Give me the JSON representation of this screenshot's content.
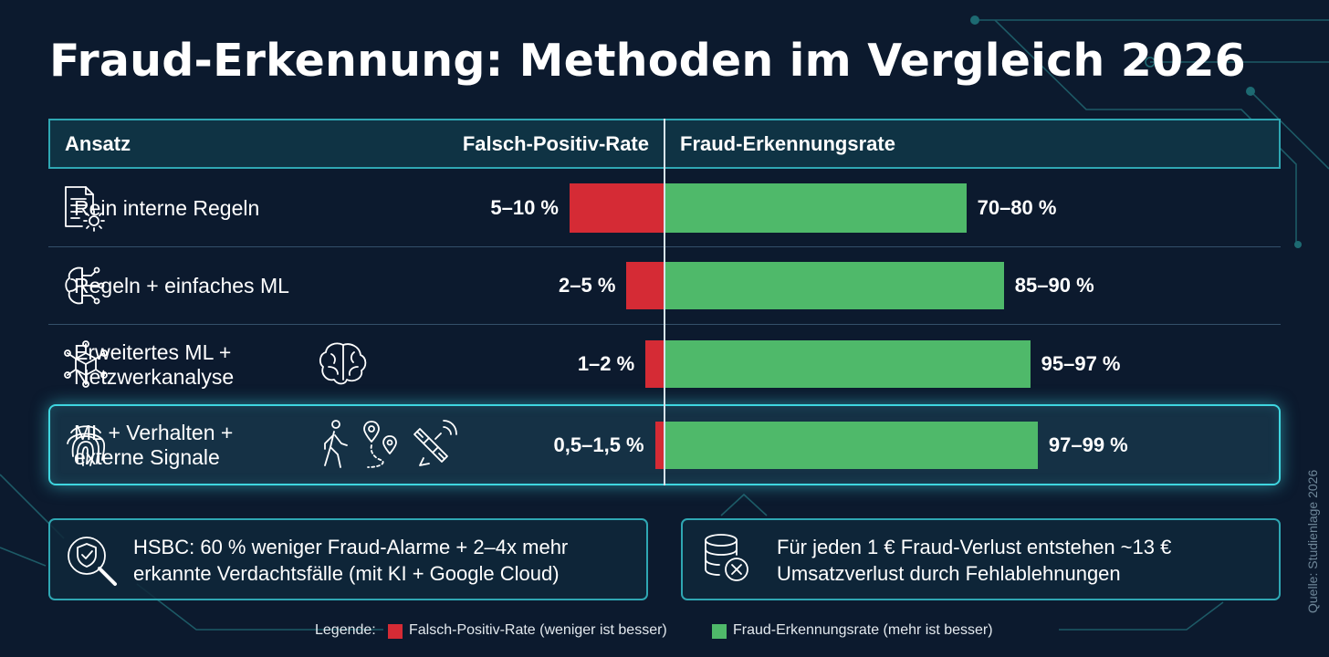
{
  "title": "Fraud-Erkennung: Methoden im Vergleich 2026",
  "header": {
    "approach": "Ansatz",
    "fp_rate": "Falsch-Positiv-Rate",
    "detection_rate": "Fraud-Erkennungsrate"
  },
  "chart_data": {
    "type": "bar",
    "categories": [
      "Rein interne Regeln",
      "Regeln + einfaches ML",
      "Erweitertes ML + Netzwerkanalyse",
      "ML + Verhalten + externe Signale"
    ],
    "series": [
      {
        "name": "Falsch-Positiv-Rate",
        "direction": "left",
        "unit": "%",
        "ranges": [
          [
            5,
            10
          ],
          [
            2,
            5
          ],
          [
            1,
            2
          ],
          [
            0.5,
            1.5
          ]
        ],
        "labels": [
          "5–10 %",
          "2–5 %",
          "1–2 %",
          "0,5–1,5 %"
        ],
        "color": "#d52b35"
      },
      {
        "name": "Fraud-Erkennungsrate",
        "direction": "right",
        "unit": "%",
        "ranges": [
          [
            70,
            80
          ],
          [
            85,
            90
          ],
          [
            95,
            97
          ],
          [
            97,
            99
          ]
        ],
        "labels": [
          "70–80 %",
          "85–90 %",
          "95–97 %",
          "97–99 %"
        ],
        "color": "#4fb96a"
      }
    ],
    "highlighted_category": 3
  },
  "rows": [
    {
      "label_lines": [
        "Rein interne Regeln"
      ],
      "icon": "document-gear-icon"
    },
    {
      "label_lines": [
        "Regeln + einfaches ML"
      ],
      "icon": "brain-circuit-icon"
    },
    {
      "label_lines": [
        "Erweitertes ML +",
        "Netzwerkanalyse"
      ],
      "icon": "network-cube-icon",
      "extra_icons": [
        "brain-icon"
      ]
    },
    {
      "label_lines": [
        "ML + Verhalten +",
        "externe Signale"
      ],
      "icon": "fingerprint-icon",
      "extra_icons": [
        "walking-person-icon",
        "location-route-icon",
        "satellite-icon"
      ]
    }
  ],
  "callouts": [
    {
      "icon": "shield-magnifier-icon",
      "lines": [
        "HSBC: 60 % weniger Fraud-Alarme + 2–4x mehr",
        "erkannte Verdachtsfälle (mit KI + Google Cloud)"
      ]
    },
    {
      "icon": "database-x-icon",
      "lines": [
        "Für jeden 1 € Fraud-Verlust entstehen ~13 €",
        "Umsatzverlust durch Fehlablehnungen"
      ]
    }
  ],
  "legend": {
    "prefix": "Legende:",
    "fp_text": "Falsch-Positiv-Rate (weniger ist besser)",
    "det_text": "Fraud-Erkennungsrate (mehr ist besser)",
    "fp_color": "#d52b35",
    "det_color": "#4fb96a"
  },
  "source": "Quelle: Studienlage 2026",
  "colors": {
    "background": "#0c1a2e",
    "accent": "#2fa7b3",
    "highlight": "#3fd6e0"
  }
}
